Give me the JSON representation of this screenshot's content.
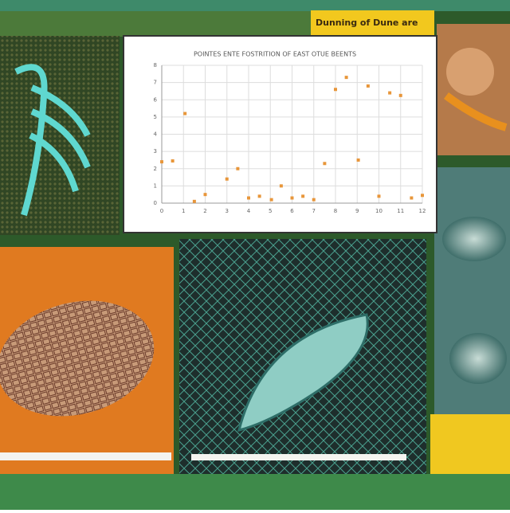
{
  "banner": "Dunning of Dune are",
  "chart_data": {
    "type": "scatter",
    "title": "POINTES ENTE FOSTRITION OF EAST OTUE BEENTS",
    "x": [
      0,
      0.5,
      1.07,
      1.5,
      2,
      3,
      3.5,
      4,
      4.5,
      5.05,
      5.5,
      6,
      6.5,
      7,
      7.5,
      8,
      8.5,
      9.05,
      9.5,
      10,
      10.5,
      11,
      11.5,
      12
    ],
    "values": [
      2.4,
      2.45,
      5.2,
      0.1,
      0.5,
      1.4,
      2,
      0.3,
      0.4,
      0.2,
      1,
      0.3,
      0.4,
      0.2,
      2.3,
      6.6,
      7.3,
      2.5,
      6.8,
      0.4,
      6.4,
      6.25,
      0.3,
      0.45
    ],
    "color": "#e8963a",
    "xlim": [
      0,
      12
    ],
    "ylim": [
      0,
      8
    ],
    "xticks": [
      0,
      1,
      2,
      3,
      4,
      5,
      6,
      7,
      8,
      9,
      10,
      11,
      12
    ],
    "yticks": [
      0,
      1,
      2,
      3,
      4,
      5,
      6,
      7,
      8
    ],
    "grid": true
  }
}
